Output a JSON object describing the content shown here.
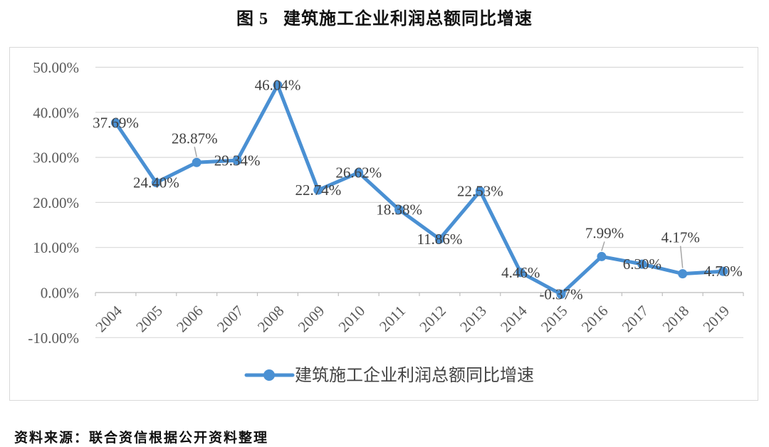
{
  "page": {
    "title": "图 5   建筑施工企业利润总额同比增速",
    "source_note": "资料来源：联合资信根据公开资料整理"
  },
  "chart_data": {
    "type": "line",
    "title": "图 5 建筑施工企业利润总额同比增速",
    "categories": [
      "2004",
      "2005",
      "2006",
      "2007",
      "2008",
      "2009",
      "2010",
      "2011",
      "2012",
      "2013",
      "2014",
      "2015",
      "2016",
      "2017",
      "2018",
      "2019"
    ],
    "series": [
      {
        "name": "建筑施工企业利润总额同比增速",
        "values": [
          37.69,
          24.4,
          28.87,
          29.34,
          46.04,
          22.74,
          26.62,
          18.38,
          11.86,
          22.53,
          4.46,
          -0.37,
          7.99,
          6.3,
          4.17,
          4.7
        ]
      }
    ],
    "data_label_format": "0.00%",
    "ylabel": "",
    "xlabel": "",
    "ylim": [
      -10,
      50
    ],
    "ytick_step": 10,
    "ytick_labels": [
      "-10.00%",
      "0.00%",
      "10.00%",
      "20.00%",
      "30.00%",
      "40.00%",
      "50.00%"
    ],
    "grid": true,
    "legend_position": "bottom",
    "x_tick_rotation": -45,
    "moved_labels": {
      "2": {
        "dx": -3,
        "dy": -34,
        "leader": true
      },
      "12": {
        "dx": 4,
        "dy": -33,
        "leader": true
      },
      "14": {
        "dx": -3,
        "dy": -51,
        "leader": true
      }
    },
    "colors": {
      "line": "#4a90d3",
      "marker": "#4a90d3",
      "gridline": "#d9d9d9",
      "axis_line": "#bfbfbf",
      "tick_label": "#595959",
      "data_label": "#404040",
      "leader_line": "#a6a6a6",
      "legend_text": "#444444",
      "frame_border": "#d9d9d9"
    }
  }
}
